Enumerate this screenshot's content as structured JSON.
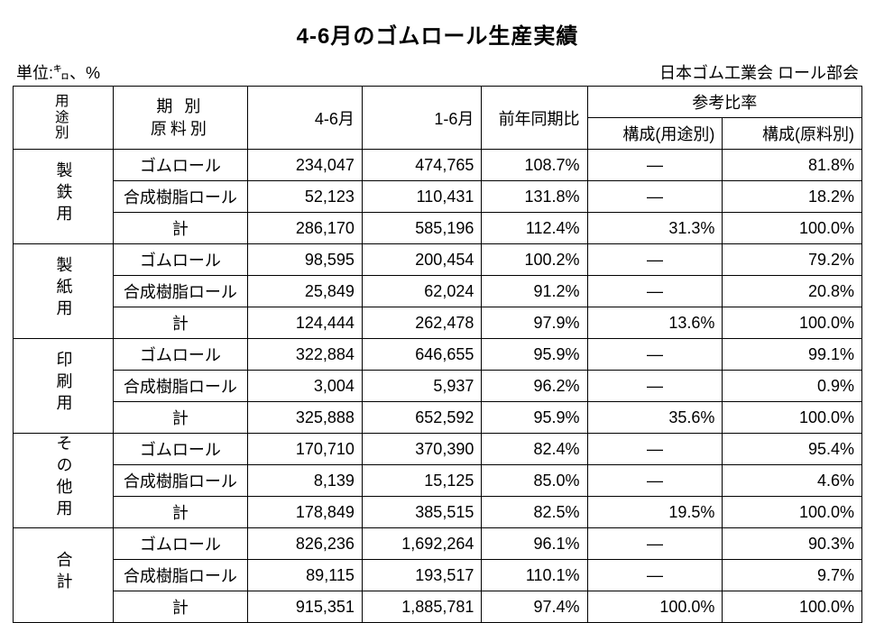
{
  "title": "4-6月のゴムロール生産実績",
  "unit_label": "単位:㌔、%",
  "source_label": "日本ゴム工業会  ロール部会",
  "headers": {
    "usage": "用\n途\n別",
    "period_material": "期  別\n原料別",
    "col_4_6": "4-6月",
    "col_1_6": "1-6月",
    "yoy": "前年同期比",
    "ref_ratio": "参考比率",
    "comp_usage": "構成(用途別)",
    "comp_material": "構成(原料別)"
  },
  "groups": [
    {
      "label": "製\n鉄\n用",
      "rows": [
        {
          "mat": "ゴムロール",
          "v46": "234,047",
          "v16": "474,765",
          "yoy": "108.7%",
          "cu": "—",
          "cm": "81.8%"
        },
        {
          "mat": "合成樹脂ロール",
          "v46": "52,123",
          "v16": "110,431",
          "yoy": "131.8%",
          "cu": "—",
          "cm": "18.2%"
        },
        {
          "mat": "計",
          "v46": "286,170",
          "v16": "585,196",
          "yoy": "112.4%",
          "cu": "31.3%",
          "cm": "100.0%"
        }
      ]
    },
    {
      "label": "製\n紙\n用",
      "rows": [
        {
          "mat": "ゴムロール",
          "v46": "98,595",
          "v16": "200,454",
          "yoy": "100.2%",
          "cu": "—",
          "cm": "79.2%"
        },
        {
          "mat": "合成樹脂ロール",
          "v46": "25,849",
          "v16": "62,024",
          "yoy": "91.2%",
          "cu": "—",
          "cm": "20.8%"
        },
        {
          "mat": "計",
          "v46": "124,444",
          "v16": "262,478",
          "yoy": "97.9%",
          "cu": "13.6%",
          "cm": "100.0%"
        }
      ]
    },
    {
      "label": "印\n刷\n用",
      "rows": [
        {
          "mat": "ゴムロール",
          "v46": "322,884",
          "v16": "646,655",
          "yoy": "95.9%",
          "cu": "—",
          "cm": "99.1%"
        },
        {
          "mat": "合成樹脂ロール",
          "v46": "3,004",
          "v16": "5,937",
          "yoy": "96.2%",
          "cu": "—",
          "cm": "0.9%"
        },
        {
          "mat": "計",
          "v46": "325,888",
          "v16": "652,592",
          "yoy": "95.9%",
          "cu": "35.6%",
          "cm": "100.0%"
        }
      ]
    },
    {
      "label": "そ\nの\n他\n用",
      "rows": [
        {
          "mat": "ゴムロール",
          "v46": "170,710",
          "v16": "370,390",
          "yoy": "82.4%",
          "cu": "—",
          "cm": "95.4%"
        },
        {
          "mat": "合成樹脂ロール",
          "v46": "8,139",
          "v16": "15,125",
          "yoy": "85.0%",
          "cu": "—",
          "cm": "4.6%"
        },
        {
          "mat": "計",
          "v46": "178,849",
          "v16": "385,515",
          "yoy": "82.5%",
          "cu": "19.5%",
          "cm": "100.0%"
        }
      ]
    },
    {
      "label": "合\n計",
      "rows": [
        {
          "mat": "ゴムロール",
          "v46": "826,236",
          "v16": "1,692,264",
          "yoy": "96.1%",
          "cu": "—",
          "cm": "90.3%"
        },
        {
          "mat": "合成樹脂ロール",
          "v46": "89,115",
          "v16": "193,517",
          "yoy": "110.1%",
          "cu": "—",
          "cm": "9.7%"
        },
        {
          "mat": "計",
          "v46": "915,351",
          "v16": "1,885,781",
          "yoy": "97.4%",
          "cu": "100.0%",
          "cm": "100.0%"
        }
      ]
    }
  ]
}
